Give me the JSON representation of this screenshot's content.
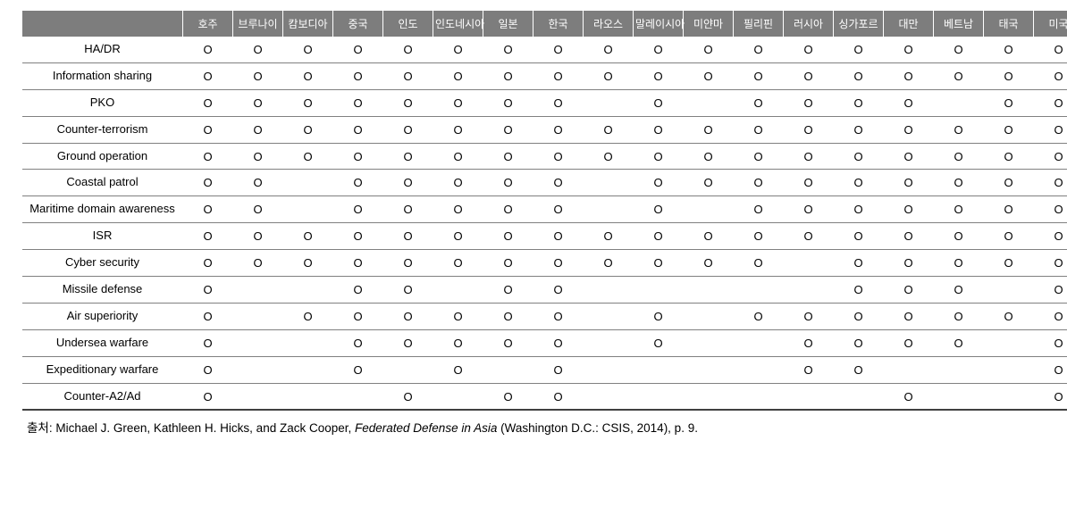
{
  "table": {
    "countries": [
      "호주",
      "브루나이",
      "캄보디아",
      "중국",
      "인도",
      "인도네시아",
      "일본",
      "한국",
      "라오스",
      "말레이시아",
      "미얀마",
      "필리핀",
      "러시아",
      "싱가포르",
      "대만",
      "베트남",
      "태국",
      "미국"
    ],
    "rows": [
      {
        "label": "HA/DR",
        "cells": [
          "O",
          "O",
          "O",
          "O",
          "O",
          "O",
          "O",
          "O",
          "O",
          "O",
          "O",
          "O",
          "O",
          "O",
          "O",
          "O",
          "O",
          "O"
        ]
      },
      {
        "label": "Information sharing",
        "cells": [
          "O",
          "O",
          "O",
          "O",
          "O",
          "O",
          "O",
          "O",
          "O",
          "O",
          "O",
          "O",
          "O",
          "O",
          "O",
          "O",
          "O",
          "O"
        ]
      },
      {
        "label": "PKO",
        "cells": [
          "O",
          "O",
          "O",
          "O",
          "O",
          "O",
          "O",
          "O",
          "",
          "O",
          "",
          "O",
          "O",
          "O",
          "O",
          "",
          "O",
          "O"
        ]
      },
      {
        "label": "Counter-terrorism",
        "cells": [
          "O",
          "O",
          "O",
          "O",
          "O",
          "O",
          "O",
          "O",
          "O",
          "O",
          "O",
          "O",
          "O",
          "O",
          "O",
          "O",
          "O",
          "O"
        ]
      },
      {
        "label": "Ground operation",
        "cells": [
          "O",
          "O",
          "O",
          "O",
          "O",
          "O",
          "O",
          "O",
          "O",
          "O",
          "O",
          "O",
          "O",
          "O",
          "O",
          "O",
          "O",
          "O"
        ]
      },
      {
        "label": "Coastal patrol",
        "cells": [
          "O",
          "O",
          "",
          "O",
          "O",
          "O",
          "O",
          "O",
          "",
          "O",
          "O",
          "O",
          "O",
          "O",
          "O",
          "O",
          "O",
          "O"
        ]
      },
      {
        "label": "Maritime domain awareness",
        "cells": [
          "O",
          "O",
          "",
          "O",
          "O",
          "O",
          "O",
          "O",
          "",
          "O",
          "",
          "O",
          "O",
          "O",
          "O",
          "O",
          "O",
          "O"
        ]
      },
      {
        "label": "ISR",
        "cells": [
          "O",
          "O",
          "O",
          "O",
          "O",
          "O",
          "O",
          "O",
          "O",
          "O",
          "O",
          "O",
          "O",
          "O",
          "O",
          "O",
          "O",
          "O"
        ]
      },
      {
        "label": "Cyber security",
        "cells": [
          "O",
          "O",
          "O",
          "O",
          "O",
          "O",
          "O",
          "O",
          "O",
          "O",
          "O",
          "O",
          "",
          "O",
          "O",
          "O",
          "O",
          "O"
        ]
      },
      {
        "label": "Missile defense",
        "cells": [
          "O",
          "",
          "",
          "O",
          "O",
          "",
          "O",
          "O",
          "",
          "",
          "",
          "",
          "",
          "O",
          "O",
          "O",
          "",
          "O"
        ]
      },
      {
        "label": "Air superiority",
        "cells": [
          "O",
          "",
          "O",
          "O",
          "O",
          "O",
          "O",
          "O",
          "",
          "O",
          "",
          "O",
          "O",
          "O",
          "O",
          "O",
          "O",
          "O"
        ]
      },
      {
        "label": "Undersea warfare",
        "cells": [
          "O",
          "",
          "",
          "O",
          "O",
          "O",
          "O",
          "O",
          "",
          "O",
          "",
          "",
          "O",
          "O",
          "O",
          "O",
          "",
          "O"
        ]
      },
      {
        "label": "Expeditionary warfare",
        "cells": [
          "O",
          "",
          "",
          "O",
          "",
          "O",
          "",
          "O",
          "",
          "",
          "",
          "",
          "O",
          "O",
          "",
          "",
          "",
          "O"
        ]
      },
      {
        "label": "Counter-A2/Ad",
        "cells": [
          "O",
          "",
          "",
          "",
          "O",
          "",
          "O",
          "O",
          "",
          "",
          "",
          "",
          "",
          "",
          "O",
          "",
          "",
          "O"
        ]
      }
    ]
  },
  "citation": {
    "prefix": "출처: Michael J. Green, Kathleen H. Hicks, and Zack Cooper, ",
    "italic": "Federated Defense in Asia ",
    "suffix": "(Washington D.C.: CSIS, 2014), p. 9."
  },
  "colors": {
    "header_bg": "#7d7d7d",
    "header_text": "#ffffff",
    "cell_border": "#808080",
    "text": "#000000",
    "background": "#ffffff"
  },
  "typography": {
    "header_fontsize": 12,
    "cell_fontsize": 13,
    "citation_fontsize": 13.5
  }
}
